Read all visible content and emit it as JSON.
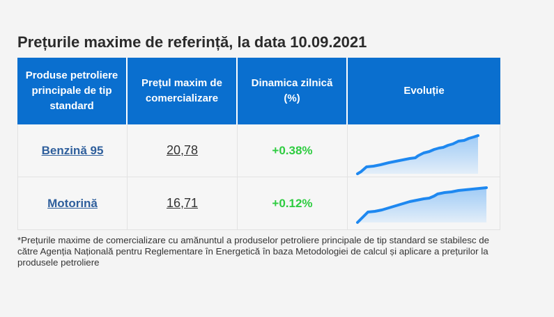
{
  "title": "Prețurile maxime de referință, la data 10.09.2021",
  "table": {
    "headers": [
      "Produse petroliere principale de tip standard",
      "Prețul maxim de comercializare",
      "Dinamica zilnică (%)",
      "Evoluție"
    ],
    "rows": [
      {
        "product": "Benzină 95",
        "price": "20,78",
        "change": "+0.38%"
      },
      {
        "product": "Motorină",
        "price": "16,71",
        "change": "+0.12%"
      }
    ]
  },
  "footnote": "*Prețurile maxime de comercializare cu amănuntul a produselor petroliere principale de tip standard se stabilesc de către Agenția Națională pentru Reglementare în Energetică în baza Metodologiei de calcul și aplicare a prețurilor la produsele petroliere",
  "colors": {
    "header_bg": "#0a6fcf",
    "positive": "#2ecc40",
    "link": "#2f5f9c",
    "spark_line": "#1e88f0"
  }
}
